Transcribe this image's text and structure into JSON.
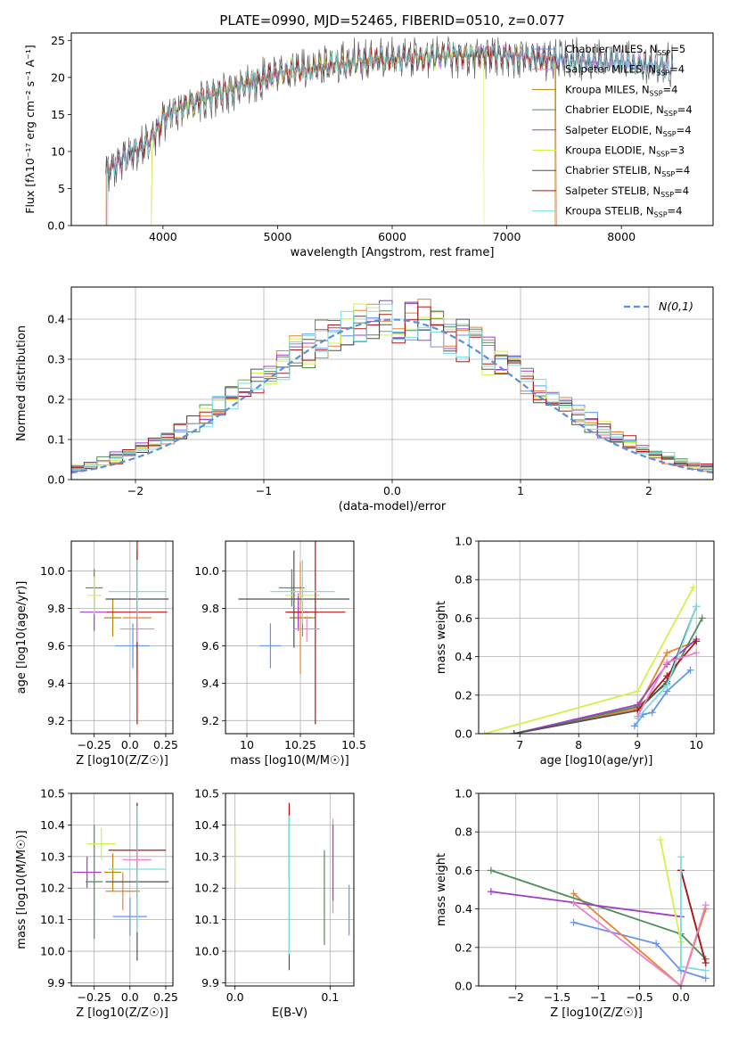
{
  "palette": [
    "#6495ed",
    "#e9822e",
    "#b8860b",
    "#4f8e56",
    "#a03ec5",
    "#d5f04a",
    "#505050",
    "#b01818",
    "#7adde0",
    "#ee82c7"
  ],
  "chart_data": [
    {
      "id": "spectrum",
      "type": "line",
      "title": "PLATE=0990, MJD=52465, FIBERID=0510, z=0.077",
      "xlabel": "wavelength [Angstrom, rest frame]",
      "ylabel": "Flux [fλ10⁻¹⁷ erg cm⁻² s⁻¹ A⁻¹]",
      "xlim": [
        3200,
        8800
      ],
      "ylim": [
        0,
        26
      ],
      "xticks": [
        4000,
        5000,
        6000,
        7000,
        8000
      ],
      "yticks": [
        0,
        5,
        10,
        15,
        20,
        25
      ],
      "grid": false,
      "legend_position": "right",
      "series_labels": [
        "Chabrier MILES, N_SSP=5",
        "Salpeter MILES, N_SSP=4",
        "Kroupa MILES, N_SSP=4",
        "Chabrier ELODIE, N_SSP=4",
        "Salpeter ELODIE, N_SSP=4",
        "Kroupa ELODIE, N_SSP=3",
        "Chabrier STELIB, N_SSP=4",
        "Salpeter STELIB, N_SSP=4",
        "Kroupa STELIB, N_SSP=4"
      ],
      "legend": [
        {
          "prefix": "Chabrier MILES, N",
          "sub": "SSP",
          "suffix": "=5",
          "color": "#6495ed"
        },
        {
          "prefix": "Salpeter MILES, N",
          "sub": "SSP",
          "suffix": "=4",
          "color": "#ee82c7"
        },
        {
          "prefix": "Kroupa MILES, N",
          "sub": "SSP",
          "suffix": "=4",
          "color": "#b8860b"
        },
        {
          "prefix": "Chabrier ELODIE, N",
          "sub": "SSP",
          "suffix": "=4",
          "color": "#4f8e56"
        },
        {
          "prefix": "Salpeter ELODIE, N",
          "sub": "SSP",
          "suffix": "=4",
          "color": "#a03ec5"
        },
        {
          "prefix": "Kroupa ELODIE, N",
          "sub": "SSP",
          "suffix": "=3",
          "color": "#d5f04a"
        },
        {
          "prefix": "Chabrier STELIB, N",
          "sub": "SSP",
          "suffix": "=4",
          "color": "#505050"
        },
        {
          "prefix": "Salpeter STELIB, N",
          "sub": "SSP",
          "suffix": "=4",
          "color": "#b01818"
        },
        {
          "prefix": "Kroupa STELIB, N",
          "sub": "SSP",
          "suffix": "=4",
          "color": "#7adde0"
        }
      ],
      "continuum": [
        [
          3500,
          7.5
        ],
        [
          3700,
          9.5
        ],
        [
          3900,
          11.5
        ],
        [
          4000,
          14.5
        ],
        [
          4200,
          16.2
        ],
        [
          4500,
          18
        ],
        [
          5000,
          20.5
        ],
        [
          5500,
          21.8
        ],
        [
          6000,
          22.5
        ],
        [
          6500,
          23
        ],
        [
          7000,
          23
        ],
        [
          7500,
          22.3
        ],
        [
          8000,
          22
        ],
        [
          8500,
          21.3
        ]
      ]
    },
    {
      "id": "residuals",
      "type": "histogram",
      "xlabel": "(data-model)/error",
      "ylabel": "Normed distribution",
      "xlim": [
        -2.5,
        2.5
      ],
      "ylim": [
        0,
        0.48
      ],
      "xticks": [
        -2,
        -1,
        0,
        1,
        2
      ],
      "yticks": [
        0.0,
        0.1,
        0.2,
        0.3,
        0.4
      ],
      "grid": true,
      "legend_position": "top-right",
      "reference_curve_label": "N(0,1)"
    },
    {
      "id": "age_vs_Z",
      "type": "scatter",
      "xlabel": "Z [log10(Z/Z☉)]",
      "ylabel": "age  [log10(age/yr)]",
      "xlim": [
        -0.41,
        0.3
      ],
      "ylim": [
        9.13,
        10.16
      ],
      "xticks": [
        -0.25,
        0.0,
        0.25
      ],
      "yticks": [
        9.2,
        9.4,
        9.6,
        9.8,
        10.0
      ],
      "grid": true,
      "points": [
        {
          "color": "#6495ed",
          "x": 0.02,
          "y": 9.6,
          "xerr": 0.12,
          "yerr": 0.12
        },
        {
          "color": "#e9822e",
          "x": 0.05,
          "y": 9.75,
          "xerr": 0.1,
          "yerr": 0.3
        },
        {
          "color": "#b8860b",
          "x": -0.12,
          "y": 9.75,
          "xerr": 0.06,
          "yerr": 0.1
        },
        {
          "color": "#4f8e56",
          "x": -0.25,
          "y": 9.91,
          "xerr": 0.06,
          "yerr": 0.1
        },
        {
          "color": "#a03ec5",
          "x": -0.25,
          "y": 9.78,
          "xerr": 0.1,
          "yerr": 0.1
        },
        {
          "color": "#d5f04a",
          "x": -0.25,
          "y": 9.87,
          "xerr": 0.05,
          "yerr": 0.1
        },
        {
          "color": "#505050",
          "x": 0.05,
          "y": 9.85,
          "xerr": 0.22,
          "yerr": 0.26
        },
        {
          "color": "#b01818",
          "x": 0.05,
          "y": 9.78,
          "xerr": 0.21,
          "yerr": 0.6
        },
        {
          "color": "#7adde0",
          "x": 0.05,
          "y": 9.89,
          "xerr": 0.2,
          "yerr": 0.17
        },
        {
          "color": "#ee82c7",
          "x": 0.05,
          "y": 9.69,
          "xerr": 0.12,
          "yerr": 0.07
        }
      ]
    },
    {
      "id": "age_vs_mass",
      "type": "scatter",
      "xlabel": "mass [log10(M/M☉)]",
      "ylabel": "",
      "xlim": [
        9.9,
        10.5
      ],
      "ylim": [
        9.13,
        10.16
      ],
      "xticks": [
        10.0,
        10.25,
        10.5
      ],
      "yticks": [
        9.2,
        9.4,
        9.6,
        9.8,
        10.0
      ],
      "grid": true,
      "points": [
        {
          "color": "#6495ed",
          "x": 10.11,
          "y": 9.6,
          "xerr": 0.05,
          "yerr": 0.12
        },
        {
          "color": "#e9822e",
          "x": 10.25,
          "y": 9.75,
          "xerr": 0.05,
          "yerr": 0.3
        },
        {
          "color": "#b8860b",
          "x": 10.26,
          "y": 9.75,
          "xerr": 0.06,
          "yerr": 0.1
        },
        {
          "color": "#4f8e56",
          "x": 10.21,
          "y": 9.91,
          "xerr": 0.06,
          "yerr": 0.1
        },
        {
          "color": "#a03ec5",
          "x": 10.24,
          "y": 9.78,
          "xerr": 0.05,
          "yerr": 0.1
        },
        {
          "color": "#d5f04a",
          "x": 10.26,
          "y": 9.87,
          "xerr": 0.08,
          "yerr": 0.1
        },
        {
          "color": "#505050",
          "x": 10.22,
          "y": 9.85,
          "xerr": 0.26,
          "yerr": 0.26
        },
        {
          "color": "#b01818",
          "x": 10.32,
          "y": 9.78,
          "xerr": 0.14,
          "yerr": 0.6
        },
        {
          "color": "#7adde0",
          "x": 10.26,
          "y": 9.89,
          "xerr": 0.15,
          "yerr": 0.17
        },
        {
          "color": "#ee82c7",
          "x": 10.28,
          "y": 9.69,
          "xerr": 0.06,
          "yerr": 0.07
        }
      ]
    },
    {
      "id": "weight_vs_age",
      "type": "line",
      "xlabel": "age  [log10(age/yr)]",
      "ylabel": "mass weight",
      "xlim": [
        6.3,
        10.3
      ],
      "ylim": [
        0,
        1
      ],
      "xticks": [
        7,
        8,
        9,
        10
      ],
      "yticks": [
        0.0,
        0.2,
        0.4,
        0.6,
        0.8,
        1.0
      ],
      "grid": true,
      "series": [
        {
          "color": "#6495ed",
          "points": [
            [
              8.95,
              0.04
            ],
            [
              9.1,
              0.1
            ],
            [
              9.25,
              0.11
            ],
            [
              9.5,
              0.22
            ],
            [
              9.9,
              0.33
            ]
          ]
        },
        {
          "color": "#e9822e",
          "points": [
            [
              6.9,
              0.0
            ],
            [
              9.0,
              0.13
            ],
            [
              9.5,
              0.42
            ],
            [
              10.0,
              0.48
            ]
          ]
        },
        {
          "color": "#4f8e56",
          "points": [
            [
              6.9,
              0.0
            ],
            [
              9.0,
              0.14
            ],
            [
              9.5,
              0.26
            ],
            [
              10.1,
              0.6
            ]
          ]
        },
        {
          "color": "#a03ec5",
          "points": [
            [
              6.9,
              0.0
            ],
            [
              9.0,
              0.15
            ],
            [
              9.5,
              0.36
            ],
            [
              10.0,
              0.49
            ]
          ]
        },
        {
          "color": "#d5f04a",
          "points": [
            [
              6.4,
              0.0
            ],
            [
              9.0,
              0.22
            ],
            [
              9.95,
              0.76
            ]
          ]
        },
        {
          "color": "#505050",
          "points": [
            [
              6.9,
              0.0
            ],
            [
              9.0,
              0.12
            ],
            [
              9.5,
              0.27
            ],
            [
              10.0,
              0.66
            ]
          ]
        },
        {
          "color": "#b01818",
          "points": [
            [
              9.0,
              0.12
            ],
            [
              9.5,
              0.3
            ],
            [
              10.0,
              0.48
            ]
          ]
        },
        {
          "color": "#7adde0",
          "points": [
            [
              9.0,
              0.08
            ],
            [
              9.5,
              0.25
            ],
            [
              10.0,
              0.66
            ]
          ]
        },
        {
          "color": "#ee82c7",
          "points": [
            [
              9.0,
              0.09
            ],
            [
              9.5,
              0.37
            ],
            [
              10.0,
              0.42
            ]
          ]
        }
      ]
    },
    {
      "id": "mass_vs_Z",
      "type": "scatter",
      "xlabel": "Z [log10(Z/Z☉)]",
      "ylabel": "mass [log10(M/M☉)]",
      "xlim": [
        -0.41,
        0.3
      ],
      "ylim": [
        9.89,
        10.5
      ],
      "xticks": [
        -0.25,
        0.0,
        0.25
      ],
      "yticks": [
        9.9,
        10.0,
        10.1,
        10.2,
        10.3,
        10.4,
        10.5
      ],
      "grid": true,
      "points": [
        {
          "color": "#6495ed",
          "x": 0.0,
          "y": 10.11,
          "xerr": 0.12,
          "yerr": 0.06
        },
        {
          "color": "#e9822e",
          "x": -0.05,
          "y": 10.19,
          "xerr": 0.12,
          "yerr": 0.06
        },
        {
          "color": "#b8860b",
          "x": -0.12,
          "y": 10.25,
          "xerr": 0.06,
          "yerr": 0.06
        },
        {
          "color": "#4f8e56",
          "x": -0.25,
          "y": 10.22,
          "xerr": 0.06,
          "yerr": 0.18
        },
        {
          "color": "#a03ec5",
          "x": -0.3,
          "y": 10.25,
          "xerr": 0.1,
          "yerr": 0.05
        },
        {
          "color": "#d5f04a",
          "x": -0.2,
          "y": 10.34,
          "xerr": 0.1,
          "yerr": 0.05
        },
        {
          "color": "#505050",
          "x": 0.05,
          "y": 10.22,
          "xerr": 0.22,
          "yerr": 0.25
        },
        {
          "color": "#b01818",
          "x": 0.05,
          "y": 10.32,
          "xerr": 0.2,
          "yerr": 0.15
        },
        {
          "color": "#7adde0",
          "x": 0.05,
          "y": 10.26,
          "xerr": 0.2,
          "yerr": 0.2
        },
        {
          "color": "#ee82c7",
          "x": 0.05,
          "y": 10.29,
          "xerr": 0.1,
          "yerr": 0.03
        }
      ]
    },
    {
      "id": "mass_vs_ebv",
      "type": "scatter",
      "xlabel": "E(B-V)",
      "ylabel": "",
      "xlim": [
        -0.01,
        0.125
      ],
      "ylim": [
        9.89,
        10.5
      ],
      "xticks": [
        0.0,
        0.1
      ],
      "yticks": [
        9.9,
        10.0,
        10.1,
        10.2,
        10.3,
        10.4,
        10.5
      ],
      "grid": true,
      "points": [
        {
          "color": "#d5f04a",
          "x": 0.0,
          "y": 10.3,
          "yerr": 0.09
        },
        {
          "color": "#505050",
          "x": 0.057,
          "y": 10.2,
          "yerr": 0.26
        },
        {
          "color": "#b01818",
          "x": 0.057,
          "y": 10.35,
          "yerr": 0.12
        },
        {
          "color": "#7adde0",
          "x": 0.057,
          "y": 10.21,
          "yerr": 0.22
        },
        {
          "color": "#4f8e56",
          "x": 0.094,
          "y": 10.17,
          "yerr": 0.15
        },
        {
          "color": "#ee82c7",
          "x": 0.103,
          "y": 10.27,
          "yerr": 0.15
        },
        {
          "color": "#a03ec5",
          "x": 0.103,
          "y": 10.28,
          "yerr": 0.12
        },
        {
          "color": "#6495ed",
          "x": 0.12,
          "y": 10.13,
          "yerr": 0.08
        }
      ]
    },
    {
      "id": "weight_vs_Z",
      "type": "line",
      "xlabel": "Z [log10(Z/Z☉)]",
      "ylabel": "mass weight",
      "xlim": [
        -2.45,
        0.4
      ],
      "ylim": [
        0,
        1
      ],
      "xticks": [
        -2.0,
        -1.5,
        -1.0,
        -0.5,
        0.0
      ],
      "yticks": [
        0.0,
        0.2,
        0.4,
        0.6,
        0.8,
        1.0
      ],
      "grid": true,
      "series": [
        {
          "color": "#6495ed",
          "points": [
            [
              -1.3,
              0.33
            ],
            [
              -0.3,
              0.22
            ],
            [
              0.0,
              0.08
            ],
            [
              0.3,
              0.04
            ]
          ]
        },
        {
          "color": "#e9822e",
          "points": [
            [
              -1.3,
              0.48
            ],
            [
              0.0,
              0.0
            ],
            [
              0.3,
              0.4
            ]
          ]
        },
        {
          "color": "#4f8e56",
          "points": [
            [
              -2.3,
              0.6
            ],
            [
              0.0,
              0.27
            ],
            [
              0.3,
              0.14
            ]
          ]
        },
        {
          "color": "#a03ec5",
          "points": [
            [
              -2.3,
              0.49
            ],
            [
              0.0,
              0.36
            ]
          ]
        },
        {
          "color": "#d5f04a",
          "points": [
            [
              -0.25,
              0.76
            ],
            [
              0.0,
              0.23
            ]
          ]
        },
        {
          "color": "#505050",
          "points": [
            [
              0.0,
              0.6
            ],
            [
              0.3,
              0.12
            ]
          ]
        },
        {
          "color": "#b01818",
          "points": [
            [
              0.0,
              0.6
            ],
            [
              0.3,
              0.12
            ]
          ]
        },
        {
          "color": "#7adde0",
          "points": [
            [
              0.0,
              0.67
            ],
            [
              0.0,
              0.1
            ],
            [
              0.3,
              0.08
            ]
          ]
        },
        {
          "color": "#ee82c7",
          "points": [
            [
              -1.3,
              0.43
            ],
            [
              0.0,
              0.0
            ],
            [
              0.3,
              0.42
            ]
          ]
        }
      ]
    }
  ]
}
